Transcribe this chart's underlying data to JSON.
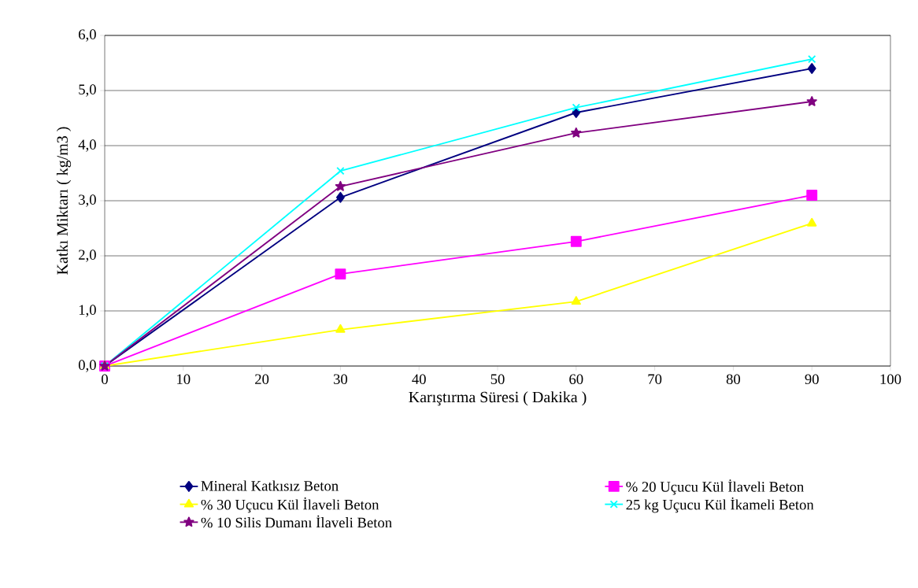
{
  "chart_data": {
    "type": "line",
    "xlabel": "Karıştırma Süresi ( Dakika )",
    "ylabel": "Katkı Miktarı ( kg/m3 )",
    "x": [
      0,
      30,
      60,
      90
    ],
    "series": [
      {
        "name": "Mineral Katkısız Beton",
        "color": "#000080",
        "marker": "diamond",
        "values": [
          0,
          3.06,
          4.6,
          5.4
        ]
      },
      {
        "name": "% 20 Uçucu Kül İlaveli Beton",
        "color": "#ff00ff",
        "marker": "square",
        "values": [
          0,
          1.67,
          2.26,
          3.1
        ]
      },
      {
        "name": "% 30 Uçucu Kül İlaveli Beton",
        "color": "#ffff00",
        "marker": "triangle",
        "values": [
          0,
          0.66,
          1.17,
          2.59
        ]
      },
      {
        "name": "25 kg Uçucu Kül İkameli Beton",
        "color": "#00ffff",
        "marker": "cross",
        "values": [
          0,
          3.54,
          4.69,
          5.57
        ]
      },
      {
        "name": "% 10 Silis Dumanı İlaveli Beton",
        "color": "#800080",
        "marker": "star",
        "values": [
          0,
          3.26,
          4.23,
          4.8
        ]
      }
    ],
    "xlim": [
      0,
      100
    ],
    "xticks": [
      0,
      10,
      20,
      30,
      40,
      50,
      60,
      70,
      80,
      90,
      100
    ],
    "ylim": [
      0,
      6
    ],
    "yticks": [
      {
        "value": 0,
        "label": "0,0"
      },
      {
        "value": 1,
        "label": "1,0"
      },
      {
        "value": 2,
        "label": "2,0"
      },
      {
        "value": 3,
        "label": "3,0"
      },
      {
        "value": 4,
        "label": "4,0"
      },
      {
        "value": 5,
        "label": "5,0"
      },
      {
        "value": 6,
        "label": "6,0"
      }
    ],
    "grid": "y",
    "legend": "bottom",
    "line_style": "solid"
  }
}
